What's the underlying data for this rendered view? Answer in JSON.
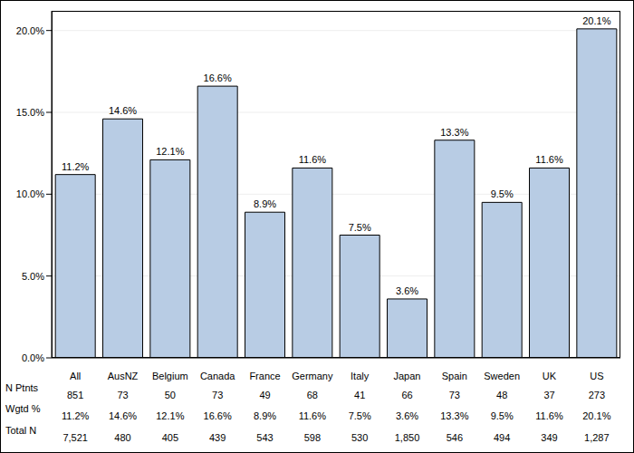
{
  "chart_data": {
    "type": "bar",
    "categories": [
      "All",
      "AusNZ",
      "Belgium",
      "Canada",
      "France",
      "Germany",
      "Italy",
      "Japan",
      "Spain",
      "Sweden",
      "UK",
      "US"
    ],
    "values": [
      11.2,
      14.6,
      12.1,
      16.6,
      8.9,
      11.6,
      7.5,
      3.6,
      13.3,
      9.5,
      11.6,
      20.1
    ],
    "value_labels": [
      "11.2%",
      "14.6%",
      "12.1%",
      "16.6%",
      "8.9%",
      "11.6%",
      "7.5%",
      "3.6%",
      "13.3%",
      "9.5%",
      "11.6%",
      "20.1%"
    ],
    "data_labels": true,
    "color": "#b8cce4",
    "ylim": [
      0,
      21.2
    ],
    "yticks": [
      {
        "value": 0,
        "label": "0.0%"
      },
      {
        "value": 5,
        "label": "5.0%"
      },
      {
        "value": 10,
        "label": "10.0%"
      },
      {
        "value": 15,
        "label": "15.0%"
      },
      {
        "value": 20,
        "label": "20.0%"
      }
    ],
    "grid": true,
    "table": {
      "rows": [
        {
          "label": "N Ptnts",
          "values": [
            "851",
            "73",
            "50",
            "73",
            "49",
            "68",
            "41",
            "66",
            "73",
            "48",
            "37",
            "273"
          ]
        },
        {
          "label": "Wgtd %",
          "values": [
            "11.2%",
            "14.6%",
            "12.1%",
            "16.6%",
            "8.9%",
            "11.6%",
            "7.5%",
            "3.6%",
            "13.3%",
            "9.5%",
            "11.6%",
            "20.1%"
          ]
        },
        {
          "label": "Total N",
          "values": [
            "7,521",
            "480",
            "405",
            "439",
            "543",
            "598",
            "530",
            "1,850",
            "546",
            "494",
            "349",
            "1,287"
          ]
        }
      ]
    }
  }
}
